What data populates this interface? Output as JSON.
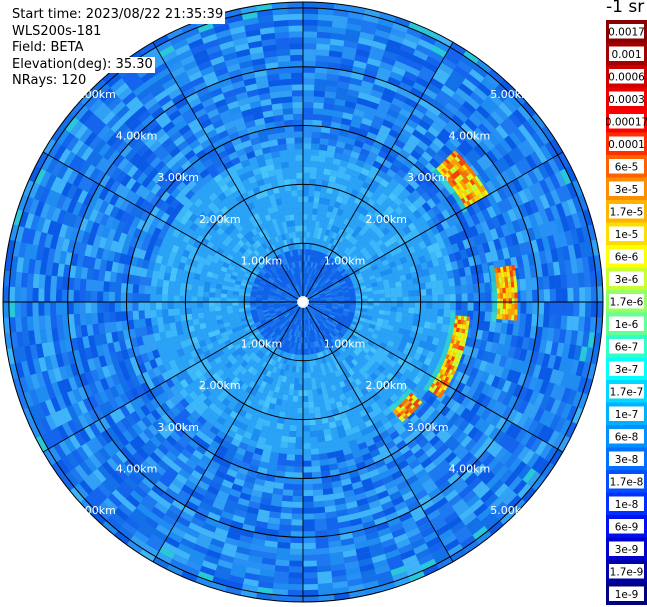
{
  "header": {
    "start_time": "Start time: 2023/08/22 21:35:39",
    "instrument": "WLS200s-181",
    "field": "Field: BETA",
    "elevation": "Elevation(deg): 35.30",
    "nrays": "NRays: 120"
  },
  "colorbar": {
    "unit": "-1 sr",
    "labels": [
      "0.0017",
      "0.001",
      "0.0006",
      "0.0003",
      "0.00017",
      "0.0001",
      "6e-5",
      "3e-5",
      "1.7e-5",
      "1e-5",
      "6e-6",
      "3e-6",
      "1.7e-6",
      "1e-6",
      "6e-7",
      "3e-7",
      "1.7e-7",
      "1e-7",
      "6e-8",
      "3e-8",
      "1.7e-8",
      "1e-8",
      "6e-9",
      "3e-9",
      "1.7e-9",
      "1e-9"
    ],
    "colors": [
      "#8b0000",
      "#a50000",
      "#cc0000",
      "#ee0000",
      "#ff0000",
      "#ff3000",
      "#ff6000",
      "#ff8c00",
      "#ffb400",
      "#ffdc00",
      "#ffff00",
      "#c8ff30",
      "#96ff64",
      "#64ff96",
      "#30ffc8",
      "#00ffff",
      "#00d8ff",
      "#00b0ff",
      "#0090ff",
      "#0070ff",
      "#0050ff",
      "#0030ff",
      "#0010ee",
      "#0000cc",
      "#0000aa",
      "#000080"
    ]
  },
  "chart_data": {
    "type": "heatmap",
    "projection": "polar (PPI scan)",
    "range_rings_km": [
      1,
      2,
      3,
      4,
      5
    ],
    "ring_labels": [
      "1.00km",
      "2.00km",
      "3.00km",
      "4.00km",
      "5.00km"
    ],
    "max_range_km": 5.1,
    "radial_spacing_deg": 30,
    "field": "BETA",
    "background_level": "1e-8 to 1.7e-7",
    "features": [
      {
        "name": "east arc",
        "azimuth_deg": [
          95,
          125
        ],
        "range_km": [
          2.6,
          2.8
        ],
        "level": "1e-5 to 1e-4"
      },
      {
        "name": "east patch",
        "azimuth_deg": [
          80,
          95
        ],
        "range_km": [
          3.3,
          3.6
        ],
        "level": "1e-5 to 1e-4"
      },
      {
        "name": "northeast patch",
        "azimuth_deg": [
          45,
          60
        ],
        "range_km": [
          3.2,
          3.6
        ],
        "level": "3e-6 to 6e-5"
      },
      {
        "name": "southeast patch",
        "azimuth_deg": [
          130,
          140
        ],
        "range_km": [
          2.4,
          2.6
        ],
        "level": "3e-6 to 3e-5"
      }
    ]
  }
}
